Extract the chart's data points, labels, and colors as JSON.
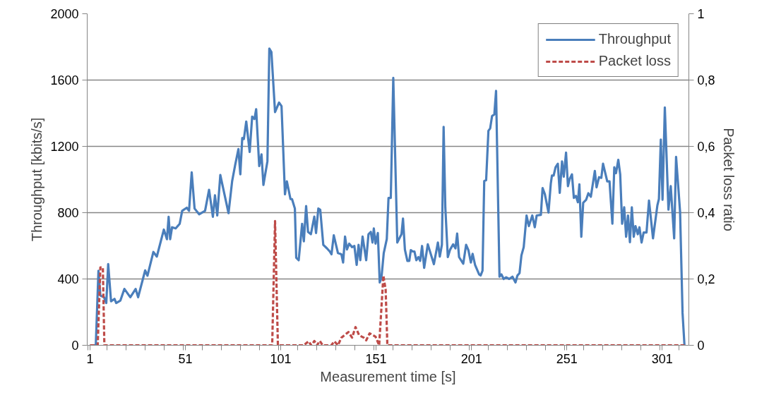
{
  "chart_data": {
    "type": "line",
    "xlabel": "Measurement time [s]",
    "ylabel": "Throughput [kbits/s]",
    "y2label": "Packet loss ratio",
    "xlim": [
      -0.5,
      315
    ],
    "xticks": [
      {
        "value": 0,
        "label": null
      },
      1,
      {
        "value": 10,
        "label": null
      },
      {
        "value": 20,
        "label": null
      },
      {
        "value": 30,
        "label": null
      },
      {
        "value": 40,
        "label": null
      },
      {
        "value": 50,
        "label": null
      },
      51,
      {
        "value": 60,
        "label": null
      },
      {
        "value": 70,
        "label": null
      },
      {
        "value": 80,
        "label": null
      },
      {
        "value": 90,
        "label": null
      },
      {
        "value": 100,
        "label": null
      },
      101,
      {
        "value": 110,
        "label": null
      },
      {
        "value": 120,
        "label": null
      },
      {
        "value": 130,
        "label": null
      },
      {
        "value": 140,
        "label": null
      },
      {
        "value": 150,
        "label": null
      },
      151,
      {
        "value": 160,
        "label": null
      },
      {
        "value": 170,
        "label": null
      },
      {
        "value": 180,
        "label": null
      },
      {
        "value": 190,
        "label": null
      },
      {
        "value": 200,
        "label": null
      },
      201,
      {
        "value": 210,
        "label": null
      },
      {
        "value": 220,
        "label": null
      },
      {
        "value": 230,
        "label": null
      },
      {
        "value": 240,
        "label": null
      },
      {
        "value": 250,
        "label": null
      },
      251,
      {
        "value": 260,
        "label": null
      },
      {
        "value": 270,
        "label": null
      },
      {
        "value": 280,
        "label": null
      },
      {
        "value": 290,
        "label": null
      },
      {
        "value": 300,
        "label": null
      },
      301,
      {
        "value": 310,
        "label": null
      }
    ],
    "ylim": [
      0,
      2000
    ],
    "yticks": [
      0,
      400,
      800,
      1200,
      1600,
      2000
    ],
    "y2lim": [
      0,
      1
    ],
    "y2ticks": [
      0,
      {
        "value": 0.2,
        "label": "0,2"
      },
      {
        "value": 0.4,
        "label": "0,4"
      },
      {
        "value": 0.6,
        "label": "0,6"
      },
      {
        "value": 0.8,
        "label": "0,8"
      },
      1
    ],
    "grid": "y",
    "legend": "top right",
    "series": [
      {
        "name": "Throughput",
        "color": "#4a7ebb",
        "line_style": "solid",
        "x": [
          1,
          4,
          5.4,
          6.4,
          8.3,
          9.5,
          10.5,
          12,
          13.8,
          14.7,
          16.9,
          19,
          22.1,
          24.9,
          26.2,
          29.9,
          31.1,
          34.2,
          36,
          39.7,
          41.3,
          42.2,
          43,
          44,
          45.9,
          48,
          49.3,
          51.7,
          52.9,
          54.3,
          55.8,
          58.2,
          61.3,
          63.4,
          65.4,
          66.5,
          67.7,
          69.3,
          73.6,
          75.5,
          77.1,
          78.8,
          79.8,
          80.8,
          81.65,
          82.9,
          84.7,
          86,
          87.2,
          88.1,
          89.7,
          90.9,
          91.9,
          94,
          95,
          96.1,
          98,
          100.1,
          101.4,
          103.2,
          104.2,
          106.1,
          106.9,
          108.4,
          109.1,
          110.4,
          112.2,
          113.1,
          114.3,
          115.3,
          116.8,
          118.6,
          119.5,
          120.7,
          121.7,
          123.3,
          125.2,
          126.7,
          127.6,
          128.8,
          131,
          132.8,
          133.7,
          134.7,
          135.7,
          136.9,
          138.4,
          139.6,
          140.8,
          141.8,
          142.7,
          143.9,
          145.8,
          147,
          148.2,
          149.1,
          149.8,
          150.7,
          151.9,
          152.9,
          153.8,
          155,
          156.6,
          157.5,
          158.7,
          160,
          162.1,
          164.3,
          165.1,
          166.1,
          167.4,
          168.4,
          169.2,
          170.2,
          171.1,
          172.1,
          173.2,
          174.1,
          175.1,
          176.2,
          178.1,
          181.3,
          183.4,
          184.4,
          185.5,
          186.4,
          187.3,
          188.6,
          189.8,
          191.4,
          192.6,
          193.5,
          194.5,
          196.7,
          198.2,
          199.4,
          200.7,
          201.6,
          202.9,
          205,
          205.8,
          206.8,
          207.7,
          208.7,
          209.9,
          210.8,
          211.8,
          213,
          213.9,
          215.7,
          216.7,
          217.9,
          219.2,
          220.8,
          222.5,
          224.1,
          225.1,
          226.2,
          227.2,
          228.4,
          229.9,
          231.1,
          232.9,
          234.2,
          235.2,
          237.4,
          238.3,
          239.5,
          241.4,
          242.6,
          243.2,
          244.1,
          245.1,
          246.3,
          247.3,
          248.5,
          249.4,
          250.6,
          251.6,
          252.5,
          253.7,
          254.7,
          255.8,
          256.8,
          257.6,
          258.6,
          259.6,
          261.1,
          262.3,
          263.6,
          265.7,
          266.6,
          267.9,
          269.1,
          270,
          271.2,
          272.2,
          273.4,
          274.9,
          275.9,
          276.8,
          278,
          279,
          280,
          281.1,
          282.1,
          283.1,
          284.1,
          285.1,
          286.1,
          287,
          288.2,
          289.1,
          290.2,
          291.3,
          292.8,
          294.1,
          296.2,
          298.5,
          299.3,
          300.3,
          301.2,
          302.4,
          304.3,
          305.5,
          307.3,
          308.3,
          310.4,
          311.7,
          312.7
        ],
        "values": [
          0,
          0,
          450,
          300,
          290,
          255,
          490,
          265,
          280,
          255,
          270,
          340,
          290,
          340,
          290,
          452,
          420,
          563,
          535,
          698,
          640,
          775,
          640,
          712,
          705,
          733,
          811,
          830,
          811,
          1043,
          825,
          790,
          811,
          938,
          775,
          905,
          783,
          1027,
          797,
          990,
          1088,
          1184,
          1031,
          1251,
          1244,
          1350,
          1166,
          1379,
          1365,
          1424,
          1081,
          1152,
          967,
          1110,
          1790,
          1769,
          1407,
          1464,
          1443,
          911,
          989,
          882,
          882,
          825,
          528,
          513,
          733,
          627,
          840,
          684,
          670,
          776,
          677,
          825,
          818,
          606,
          585,
          566,
          549,
          663,
          556,
          549,
          499,
          656,
          578,
          613,
          592,
          599,
          485,
          606,
          513,
          656,
          513,
          670,
          684,
          620,
          705,
          613,
          677,
          379,
          407,
          556,
          641,
          889,
          889,
          1613,
          620,
          670,
          764,
          577,
          509,
          509,
          574,
          566,
          566,
          513,
          532,
          509,
          599,
          467,
          609,
          489,
          620,
          535,
          606,
          1318,
          830,
          532,
          577,
          609,
          585,
          674,
          532,
          492,
          606,
          574,
          499,
          552,
          485,
          428,
          421,
          450,
          991,
          996,
          1294,
          1308,
          1383,
          1393,
          1535,
          414,
          428,
          400,
          410,
          400,
          414,
          379,
          421,
          435,
          542,
          592,
          783,
          719,
          783,
          712,
          783,
          787,
          949,
          911,
          801,
          975,
          1024,
          1024,
          1074,
          1095,
          920,
          1109,
          1017,
          1162,
          960,
          1003,
          1031,
          889,
          901,
          863,
          971,
          655,
          860,
          877,
          917,
          896,
          1052,
          953,
          1014,
          1010,
          1095,
          1038,
          989,
          989,
          733,
          1074,
          1038,
          1119,
          1031,
          733,
          833,
          655,
          783,
          622,
          833,
          655,
          719,
          670,
          712,
          620,
          680,
          680,
          873,
          645,
          844,
          882,
          1241,
          878,
          1435,
          818,
          960,
          645,
          1137,
          805,
          194,
          0
        ]
      },
      {
        "name": "Packet loss",
        "color": "#be4b48",
        "line_style": "dashed",
        "axis": "y2",
        "x": [
          1,
          5,
          6.4,
          7.7,
          8.5,
          96.5,
          98,
          99.5,
          113,
          115.6,
          117,
          118.6,
          120,
          121.5,
          123,
          127.5,
          129.1,
          131,
          132.8,
          136.5,
          138.4,
          140.2,
          142.1,
          144.5,
          145.8,
          147.6,
          150.7,
          152.6,
          154.8,
          156,
          156.9,
          312.7
        ],
        "values": [
          0,
          0,
          0.235,
          0.235,
          0,
          0,
          0.375,
          0,
          0,
          0.012,
          0,
          0.013,
          0,
          0.013,
          0,
          0,
          0.012,
          0,
          0.023,
          0.04,
          0.023,
          0.055,
          0.03,
          0.023,
          0.015,
          0.036,
          0.026,
          0,
          0.21,
          0.168,
          0,
          0
        ]
      }
    ]
  }
}
